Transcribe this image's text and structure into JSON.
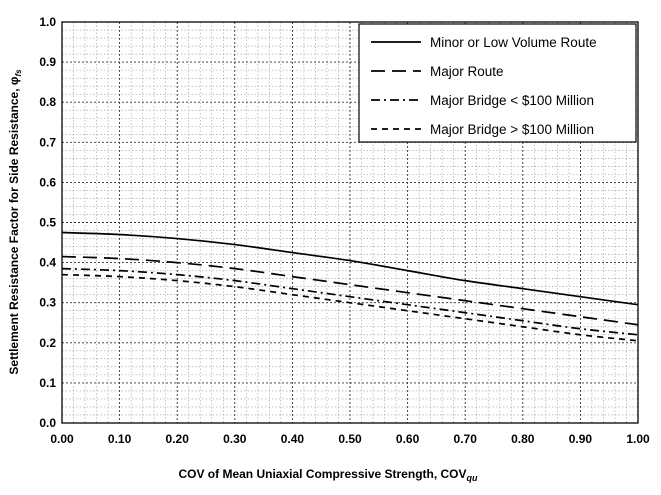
{
  "chart_data": {
    "type": "line",
    "xlabel": "COV of Mean Uniaxial Compressive Strength, COV",
    "xlabel_sub": "qu",
    "ylabel": "Settlement Resistance Factor for Side Resistance, φ",
    "ylabel_sub": "fs",
    "xlim": [
      0,
      1.0
    ],
    "ylim": [
      0,
      1.0
    ],
    "x_ticks": [
      "0.00",
      "0.10",
      "0.20",
      "0.30",
      "0.40",
      "0.50",
      "0.60",
      "0.70",
      "0.80",
      "0.90",
      "1.00"
    ],
    "y_ticks": [
      "0.0",
      "0.1",
      "0.2",
      "0.3",
      "0.4",
      "0.5",
      "0.6",
      "0.7",
      "0.8",
      "0.9",
      "1.0"
    ],
    "grid": true,
    "legend_position": "top-right",
    "x": [
      0,
      0.1,
      0.2,
      0.3,
      0.4,
      0.5,
      0.6,
      0.7,
      0.8,
      0.9,
      1.0
    ],
    "series": [
      {
        "name": "Minor or Low Volume Route",
        "style": "solid",
        "values": [
          0.475,
          0.47,
          0.46,
          0.445,
          0.425,
          0.405,
          0.38,
          0.355,
          0.335,
          0.315,
          0.295
        ]
      },
      {
        "name": "Major Route",
        "style": "long-dash",
        "values": [
          0.415,
          0.41,
          0.4,
          0.385,
          0.365,
          0.345,
          0.325,
          0.305,
          0.285,
          0.265,
          0.245
        ]
      },
      {
        "name": "Major Bridge < $100 Million",
        "style": "dash-dot",
        "values": [
          0.385,
          0.38,
          0.37,
          0.355,
          0.335,
          0.315,
          0.295,
          0.275,
          0.255,
          0.235,
          0.22
        ]
      },
      {
        "name": "Major Bridge > $100 Million",
        "style": "short-dash",
        "values": [
          0.37,
          0.365,
          0.355,
          0.34,
          0.32,
          0.3,
          0.28,
          0.26,
          0.24,
          0.22,
          0.205
        ]
      }
    ]
  }
}
